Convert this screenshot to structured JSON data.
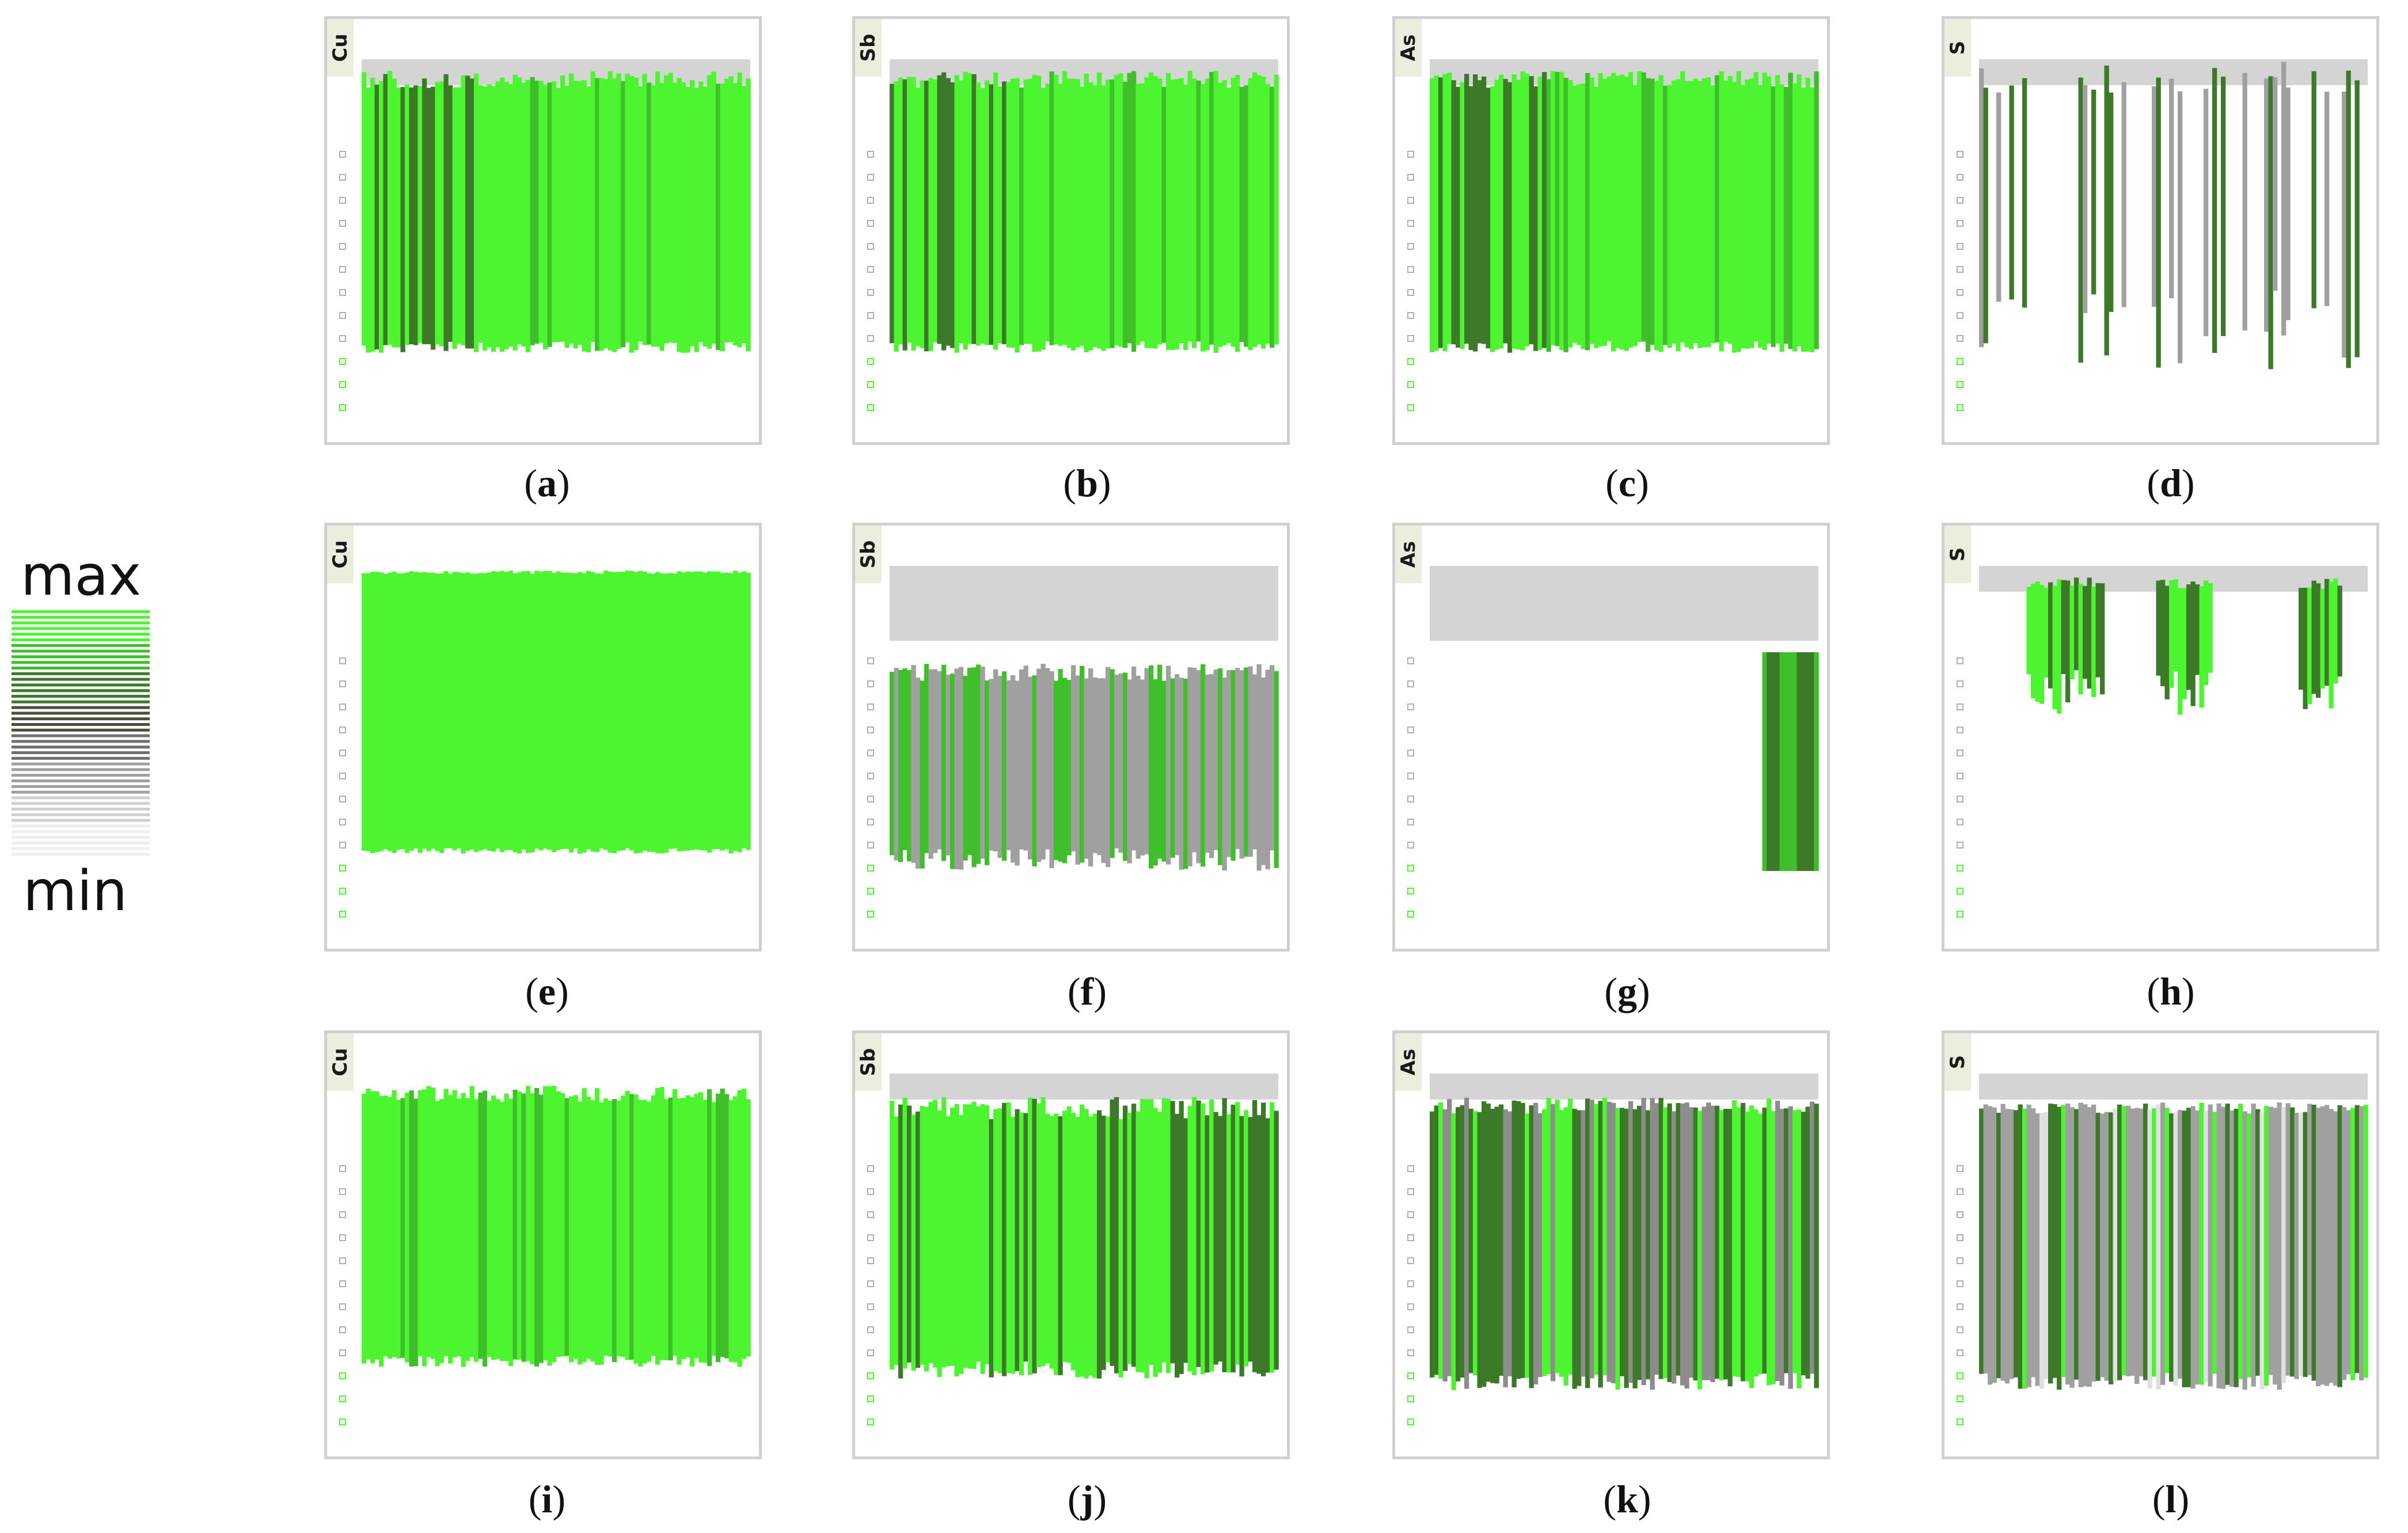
{
  "legend": {
    "max_label": "max",
    "min_label": "min",
    "ramp_colors": [
      "#4cf52f",
      "#3fc02a",
      "#3c7a2a",
      "#4d4d3f",
      "#6f6f6f",
      "#a0a0a0",
      "#cfcfcf",
      "#eeeeee"
    ]
  },
  "colors": {
    "green": "#4cf52f",
    "dark": "#4d4d3f",
    "gray": "#d4d4d4",
    "frame": "#d0d0d0",
    "tag": "#eceddc"
  },
  "chart_data": [
    {
      "type": "heatmap",
      "panel": "a",
      "element": "Cu",
      "caption_letter": "a",
      "pattern": "mostly_high_low_left"
    },
    {
      "type": "heatmap",
      "panel": "b",
      "element": "Sb",
      "caption_letter": "b",
      "pattern": "mostly_high_low_left"
    },
    {
      "type": "heatmap",
      "panel": "c",
      "element": "As",
      "caption_letter": "c",
      "pattern": "mostly_high_low_left"
    },
    {
      "type": "heatmap",
      "panel": "d",
      "element": "S",
      "caption_letter": "d",
      "pattern": "sparse_spikes"
    },
    {
      "type": "heatmap",
      "panel": "e",
      "element": "Cu",
      "caption_letter": "e",
      "pattern": "uniform_high"
    },
    {
      "type": "heatmap",
      "panel": "f",
      "element": "Sb",
      "caption_letter": "f",
      "pattern": "banded_middle"
    },
    {
      "type": "heatmap",
      "panel": "g",
      "element": "As",
      "caption_letter": "g",
      "pattern": "low_with_right_high"
    },
    {
      "type": "heatmap",
      "panel": "h",
      "element": "S",
      "caption_letter": "h",
      "pattern": "top_clusters"
    },
    {
      "type": "heatmap",
      "panel": "i",
      "element": "Cu",
      "caption_letter": "i",
      "pattern": "mostly_high"
    },
    {
      "type": "heatmap",
      "panel": "j",
      "element": "Sb",
      "caption_letter": "j",
      "pattern": "mixed_high"
    },
    {
      "type": "heatmap",
      "panel": "k",
      "element": "As",
      "caption_letter": "k",
      "pattern": "mixed"
    },
    {
      "type": "heatmap",
      "panel": "l",
      "element": "S",
      "caption_letter": "l",
      "pattern": "mixed_low"
    }
  ]
}
